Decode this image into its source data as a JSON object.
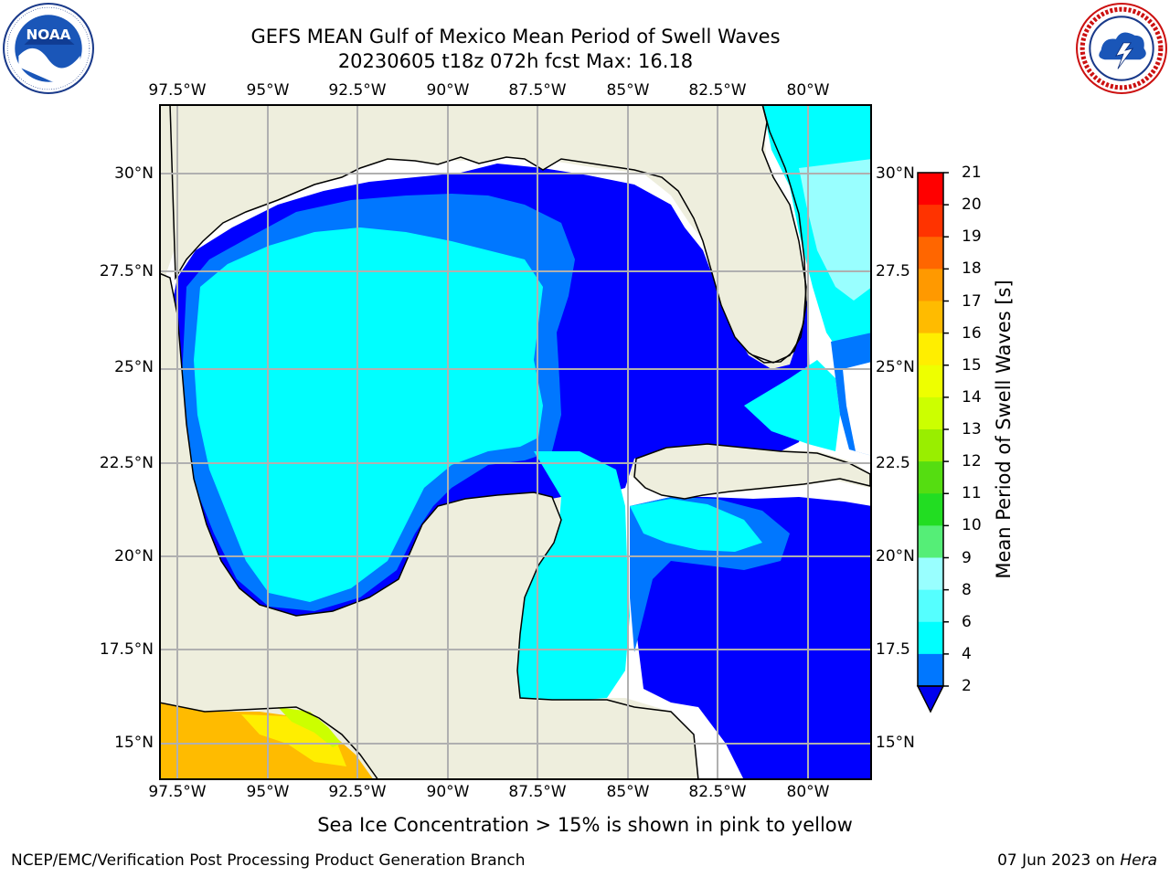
{
  "title": {
    "line1": "GEFS MEAN Gulf of Mexico Mean Period of Swell Waves",
    "line2": "20230605 t18z 072h fcst   Max: 16.18"
  },
  "logos": {
    "left": "noaa-logo",
    "right": "nws-logo"
  },
  "map": {
    "longitude_ticks": [
      "97.5°W",
      "95°W",
      "92.5°W",
      "90°W",
      "87.5°W",
      "85°W",
      "82.5°W",
      "80°W"
    ],
    "latitude_ticks_left": [
      "30°N",
      "27.5°N",
      "25°N",
      "22.5°N",
      "20°N",
      "17.5°N",
      "15°N"
    ],
    "latitude_ticks_right": [
      "30°N",
      "27.5",
      "25°N",
      "22.5",
      "20°N",
      "17.5",
      "15°N"
    ],
    "colors": {
      "land": "#eeeedd",
      "coast": "#000000",
      "grid": "#b0b0b0",
      "no_data": "#ffffff"
    }
  },
  "colorbar": {
    "title": "Mean Period of Swell Waves [s]",
    "levels": [
      "2",
      "4",
      "6",
      "8",
      "9",
      "10",
      "11",
      "12",
      "13",
      "14",
      "15",
      "16",
      "17",
      "18",
      "19",
      "20",
      "21"
    ],
    "colors": [
      "#0000ff",
      "#0077ff",
      "#00ffff",
      "#55ffff",
      "#99ffff",
      "#55ee77",
      "#22dd22",
      "#55dd11",
      "#99ee00",
      "#ccff00",
      "#eeff00",
      "#ffee00",
      "#ffbb00",
      "#ff9900",
      "#ff6600",
      "#ff3300",
      "#ff0000"
    ],
    "under_color": "#0000ee"
  },
  "footnote": "Sea Ice Concentration > 15% is shown in pink to yellow",
  "credit": {
    "branch": "NCEP/EMC/Verification Post Processing Product Generation Branch",
    "date": "07 Jun 2023 on",
    "machine": "Hera"
  }
}
